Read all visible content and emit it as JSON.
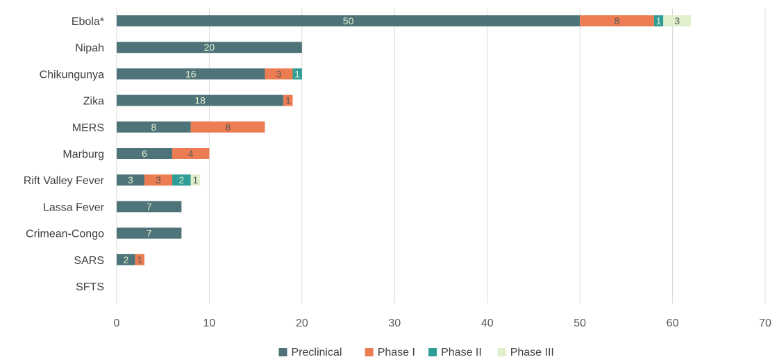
{
  "chart_data": {
    "type": "bar",
    "orientation": "horizontal",
    "stacked": true,
    "title": "",
    "xlabel": "",
    "ylabel": "",
    "xlim": [
      0,
      70
    ],
    "x_ticks": [
      0,
      10,
      20,
      30,
      40,
      50,
      60,
      70
    ],
    "grid": true,
    "legend_position": "bottom",
    "categories": [
      "Ebola*",
      "Nipah",
      "Chikungunya",
      "Zika",
      "MERS",
      "Marburg",
      "Rift Valley Fever",
      "Lassa Fever",
      "Crimean-Congo",
      "SARS",
      "SFTS"
    ],
    "series": [
      {
        "name": "Preclinical",
        "color": "#4e7479",
        "label_color": "#e2efcd",
        "values": [
          50,
          20,
          16,
          18,
          8,
          6,
          3,
          7,
          7,
          2,
          0
        ]
      },
      {
        "name": "Phase I",
        "color": "#ec7c52",
        "label_color": "#595959",
        "values": [
          8,
          0,
          3,
          1,
          8,
          4,
          3,
          0,
          0,
          1,
          0
        ]
      },
      {
        "name": "Phase II",
        "color": "#2f9c96",
        "label_color": "#e2efcd",
        "values": [
          1,
          0,
          1,
          0,
          0,
          0,
          2,
          0,
          0,
          0,
          0
        ]
      },
      {
        "name": "Phase III",
        "color": "#e2efcd",
        "label_color": "#595959",
        "values": [
          3,
          0,
          0,
          0,
          0,
          0,
          1,
          0,
          0,
          0,
          0
        ]
      }
    ]
  }
}
